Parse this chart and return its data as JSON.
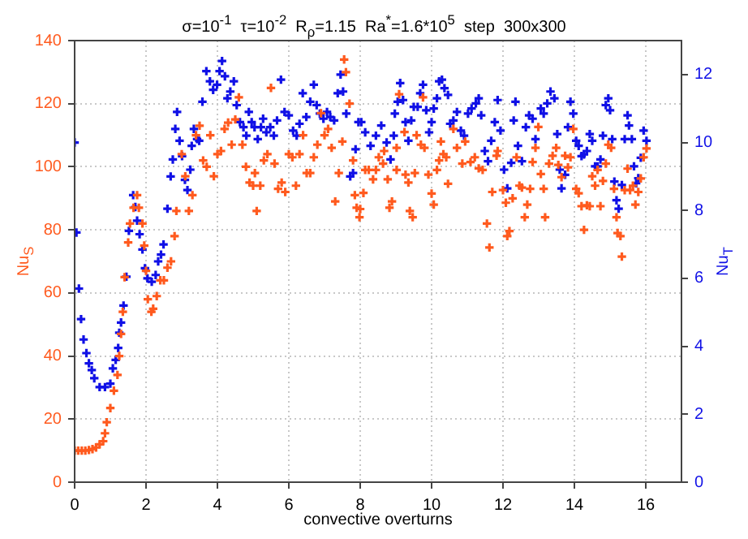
{
  "chart_data": {
    "type": "scatter",
    "title": "σ=10$^{-1}$  τ=10$^{-2}$  R$_{ρ}$=1.15  Ra$^{*}$=1.6*10$^{5}$  step  300x300",
    "xlabel": "convective overturns",
    "ylabel": "Nu$_{S}$",
    "y2label": "Nu$_{T}$",
    "xlim": [
      0,
      17
    ],
    "xticks": [
      0,
      2,
      4,
      6,
      8,
      10,
      12,
      14,
      16
    ],
    "ylim": [
      0,
      140
    ],
    "yticks": [
      0,
      20,
      40,
      60,
      80,
      100,
      120,
      140
    ],
    "y2lim": [
      0,
      13
    ],
    "y2ticks": [
      0,
      2,
      4,
      6,
      8,
      10,
      12
    ],
    "grid": true,
    "legend": false,
    "series": [
      {
        "color": "#ff5a1e",
        "marker": "cross",
        "x": [
          0,
          0.1,
          0.2,
          0.3,
          0.4,
          0.5,
          0.6,
          0.7,
          0.8,
          0.85,
          0.9,
          1.0,
          1.1,
          1.2,
          1.25,
          1.3,
          1.35,
          1.4,
          1.5,
          1.55,
          1.65,
          1.75,
          1.8,
          1.9,
          1.95,
          2.0,
          2.05,
          2.15,
          2.2,
          2.3,
          2.4,
          2.5,
          2.6,
          2.7,
          2.8,
          2.85,
          3.0,
          3.1,
          3.2,
          3.3,
          3.4,
          3.5,
          3.6,
          3.7,
          3.8,
          3.9,
          4.0,
          4.1,
          4.2,
          4.3,
          4.4,
          4.5,
          4.6,
          4.7,
          4.8,
          4.9,
          5.0,
          5.05,
          5.1,
          5.2,
          5.3,
          5.4,
          5.5,
          5.6,
          5.7,
          5.8,
          5.9,
          6.0,
          6.1,
          6.2,
          6.3,
          6.4,
          6.5,
          6.6,
          6.7,
          6.8,
          6.9,
          7.0,
          7.1,
          7.2,
          7.3,
          7.4,
          7.5,
          7.55,
          7.6,
          7.7,
          7.8,
          7.85,
          7.9,
          7.98,
          8.0,
          8.09,
          8.14,
          8.24,
          8.36,
          8.44,
          8.52,
          8.64,
          8.67,
          8.77,
          8.82,
          8.89,
          9.02,
          9.02,
          9.09,
          9.24,
          9.27,
          9.35,
          9.39,
          9.47,
          9.53,
          9.58,
          9.7,
          9.76,
          9.8,
          9.91,
          10.0,
          10.06,
          10.15,
          10.21,
          10.26,
          10.33,
          10.41,
          10.46,
          10.61,
          10.71,
          10.86,
          10.94,
          11.09,
          11.21,
          11.32,
          11.43,
          11.55,
          11.62,
          11.7,
          11.82,
          11.85,
          12.0,
          12.08,
          12.12,
          12.18,
          12.27,
          12.38,
          12.46,
          12.53,
          12.61,
          12.68,
          12.76,
          12.83,
          12.91,
          12.99,
          13.06,
          13.14,
          13.18,
          13.29,
          13.39,
          13.49,
          13.55,
          13.64,
          13.74,
          13.82,
          13.89,
          13.97,
          14.05,
          14.12,
          14.2,
          14.27,
          14.35,
          14.43,
          14.5,
          14.58,
          14.65,
          14.73,
          14.8,
          14.88,
          14.95,
          15.03,
          15.11,
          15.18,
          15.21,
          15.29,
          15.33,
          15.41,
          15.49,
          15.56,
          15.64,
          15.71,
          15.79,
          15.86,
          15.94,
          16.02
        ],
        "values": [
          10,
          10,
          10,
          10,
          10.2,
          10.5,
          11,
          12,
          13,
          15.5,
          19,
          23.5,
          29,
          34,
          40,
          47,
          54,
          65,
          76,
          82,
          87,
          91,
          87,
          82,
          75,
          67,
          58,
          54,
          55,
          59,
          64,
          64,
          68,
          70,
          78,
          86,
          104,
          97,
          86,
          91,
          110,
          113,
          102,
          100,
          110,
          97,
          104,
          105,
          112,
          114,
          107,
          115,
          122,
          107,
          100,
          95,
          94,
          98,
          86,
          94,
          102,
          104,
          125,
          101,
          93,
          95,
          92,
          104,
          103,
          94,
          104,
          110,
          98,
          98,
          103,
          107,
          117,
          110,
          112,
          106,
          89,
          98,
          108,
          134,
          130,
          120,
          102,
          91,
          87,
          84,
          86.6,
          91.7,
          99,
          99,
          96,
          99,
          103,
          101,
          105,
          96,
          87,
          89,
          99,
          106,
          123,
          111,
          97.5,
          95,
          86,
          84,
          98,
          110,
          107,
          122,
          106,
          97.5,
          91.5,
          88,
          99,
          102,
          108,
          104,
          103,
          94.6,
          112,
          106,
          101,
          108,
          101.5,
          103,
          99.5,
          99,
          82,
          74.4,
          92,
          103.5,
          105,
          92.6,
          88.6,
          78,
          79.6,
          90,
          103,
          94,
          93.4,
          84,
          88,
          93,
          101.5,
          106,
          112.6,
          97.7,
          93,
          84,
          101,
          103.5,
          106,
          100.6,
          96.7,
          103.5,
          99.8,
          103,
          112,
          93,
          91.6,
          87.5,
          80,
          87.8,
          87.5,
          97,
          94,
          99,
          87.5,
          95.5,
          101,
          107,
          106,
          93,
          84,
          79,
          78,
          71.5,
          92.6,
          99.4,
          92.6,
          94,
          88,
          92,
          96.3,
          103,
          105.8
        ]
      },
      {
        "color": "#1010e6",
        "marker": "cross",
        "axis": "y2",
        "x": [
          0,
          0.05,
          0.12,
          0.18,
          0.25,
          0.33,
          0.4,
          0.48,
          0.55,
          0.7,
          0.85,
          1.0,
          1.07,
          1.15,
          1.22,
          1.25,
          1.3,
          1.37,
          1.45,
          1.52,
          1.64,
          1.7,
          1.75,
          1.82,
          1.9,
          1.97,
          2.04,
          2.16,
          2.27,
          2.34,
          2.42,
          2.49,
          2.6,
          2.69,
          2.75,
          2.82,
          2.87,
          2.94,
          3.01,
          3.09,
          3.16,
          3.24,
          3.28,
          3.34,
          3.43,
          3.49,
          3.58,
          3.69,
          3.79,
          3.88,
          3.99,
          4.06,
          4.13,
          4.21,
          4.28,
          4.36,
          4.46,
          4.54,
          4.63,
          4.73,
          4.81,
          4.88,
          4.96,
          5.04,
          5.13,
          5.22,
          5.28,
          5.37,
          5.48,
          5.58,
          5.67,
          5.78,
          5.88,
          6.0,
          6.12,
          6.22,
          6.3,
          6.39,
          6.49,
          6.6,
          6.7,
          6.78,
          6.87,
          6.97,
          7.07,
          7.16,
          7.27,
          7.37,
          7.45,
          7.52,
          7.61,
          7.72,
          7.8,
          7.87,
          7.95,
          8.03,
          8.14,
          8.29,
          8.44,
          8.59,
          8.74,
          8.85,
          8.94,
          8.97,
          9.05,
          9.12,
          9.2,
          9.27,
          9.35,
          9.43,
          9.5,
          9.61,
          9.68,
          9.76,
          9.85,
          9.93,
          10.0,
          10.06,
          10.15,
          10.21,
          10.29,
          10.36,
          10.46,
          10.52,
          10.61,
          10.71,
          10.82,
          10.91,
          11.02,
          11.12,
          11.24,
          11.32,
          11.39,
          11.49,
          11.58,
          11.67,
          11.77,
          11.85,
          11.93,
          12.03,
          12.12,
          12.23,
          12.3,
          12.35,
          12.42,
          12.53,
          12.64,
          12.73,
          12.83,
          12.91,
          13.06,
          13.14,
          13.24,
          13.33,
          13.44,
          13.52,
          13.59,
          13.64,
          13.74,
          13.82,
          13.89,
          13.97,
          14.05,
          14.12,
          14.2,
          14.27,
          14.35,
          14.43,
          14.5,
          14.58,
          14.65,
          14.73,
          14.8,
          14.88,
          14.95,
          15.0,
          15.06,
          15.12,
          15.18,
          15.24,
          15.33,
          15.41,
          15.49,
          15.53,
          15.61,
          15.67,
          15.73,
          15.79,
          15.86,
          15.94,
          16.02
        ],
        "values": [
          10.0,
          7.35,
          5.7,
          4.8,
          4.2,
          3.8,
          3.5,
          3.3,
          3.06,
          2.8,
          2.8,
          2.9,
          3.35,
          3.6,
          3.95,
          4.4,
          4.7,
          5.2,
          6.05,
          7.4,
          8.45,
          8.1,
          7.7,
          7.3,
          6.85,
          6.3,
          6.0,
          5.9,
          6.1,
          6.5,
          6.7,
          7.0,
          8.05,
          9.0,
          9.5,
          10.4,
          10.9,
          10.05,
          9.6,
          8.9,
          8.6,
          9.2,
          9.9,
          10.4,
          10.1,
          10.05,
          11.2,
          12.1,
          11.8,
          11.55,
          11.7,
          12.1,
          12.4,
          11.95,
          11.3,
          11.5,
          11.8,
          11.1,
          10.6,
          10.45,
          10.2,
          10.9,
          10.6,
          10.45,
          10.1,
          10.45,
          10.7,
          10.3,
          10.45,
          10.2,
          10.65,
          11.85,
          10.9,
          10.8,
          10.35,
          10.2,
          10.55,
          11.45,
          10.75,
          11.2,
          11.7,
          11.1,
          10.85,
          10.7,
          10.9,
          10.75,
          10.65,
          11.45,
          12.0,
          11.5,
          10.85,
          9.0,
          9.1,
          9.8,
          10.6,
          10.6,
          10.3,
          9.9,
          10.2,
          10.5,
          10.0,
          9.5,
          10.2,
          10.85,
          11.2,
          11.75,
          11.25,
          10.6,
          10.05,
          10.65,
          11.05,
          11.05,
          11.45,
          11.7,
          10.95,
          10.3,
          10.6,
          11.0,
          11.3,
          11.8,
          11.85,
          11.6,
          11.4,
          10.55,
          10.65,
          10.9,
          10.35,
          10.2,
          10.85,
          11.0,
          11.15,
          11.3,
          10.8,
          9.75,
          9.45,
          10.05,
          10.6,
          11.25,
          10.35,
          9.2,
          8.65,
          9.4,
          10.65,
          11.2,
          9.9,
          9.45,
          10.45,
          10.8,
          10.7,
          10.1,
          11.0,
          10.85,
          11.15,
          11.5,
          11.3,
          10.25,
          9.2,
          8.65,
          9.05,
          10.45,
          11.2,
          10.85,
          10.05,
          9.9,
          9.6,
          9.65,
          9.75,
          10.25,
          10.05,
          9.3,
          9.3,
          9.5,
          10.2,
          11.1,
          11.3,
          10.95,
          10.1,
          8.85,
          8.3,
          8.05,
          8.75,
          10.1,
          10.8,
          10.5,
          10.1,
          9.3,
          8.8,
          8.95,
          9.55,
          10.35,
          10.05
        ]
      }
    ]
  }
}
